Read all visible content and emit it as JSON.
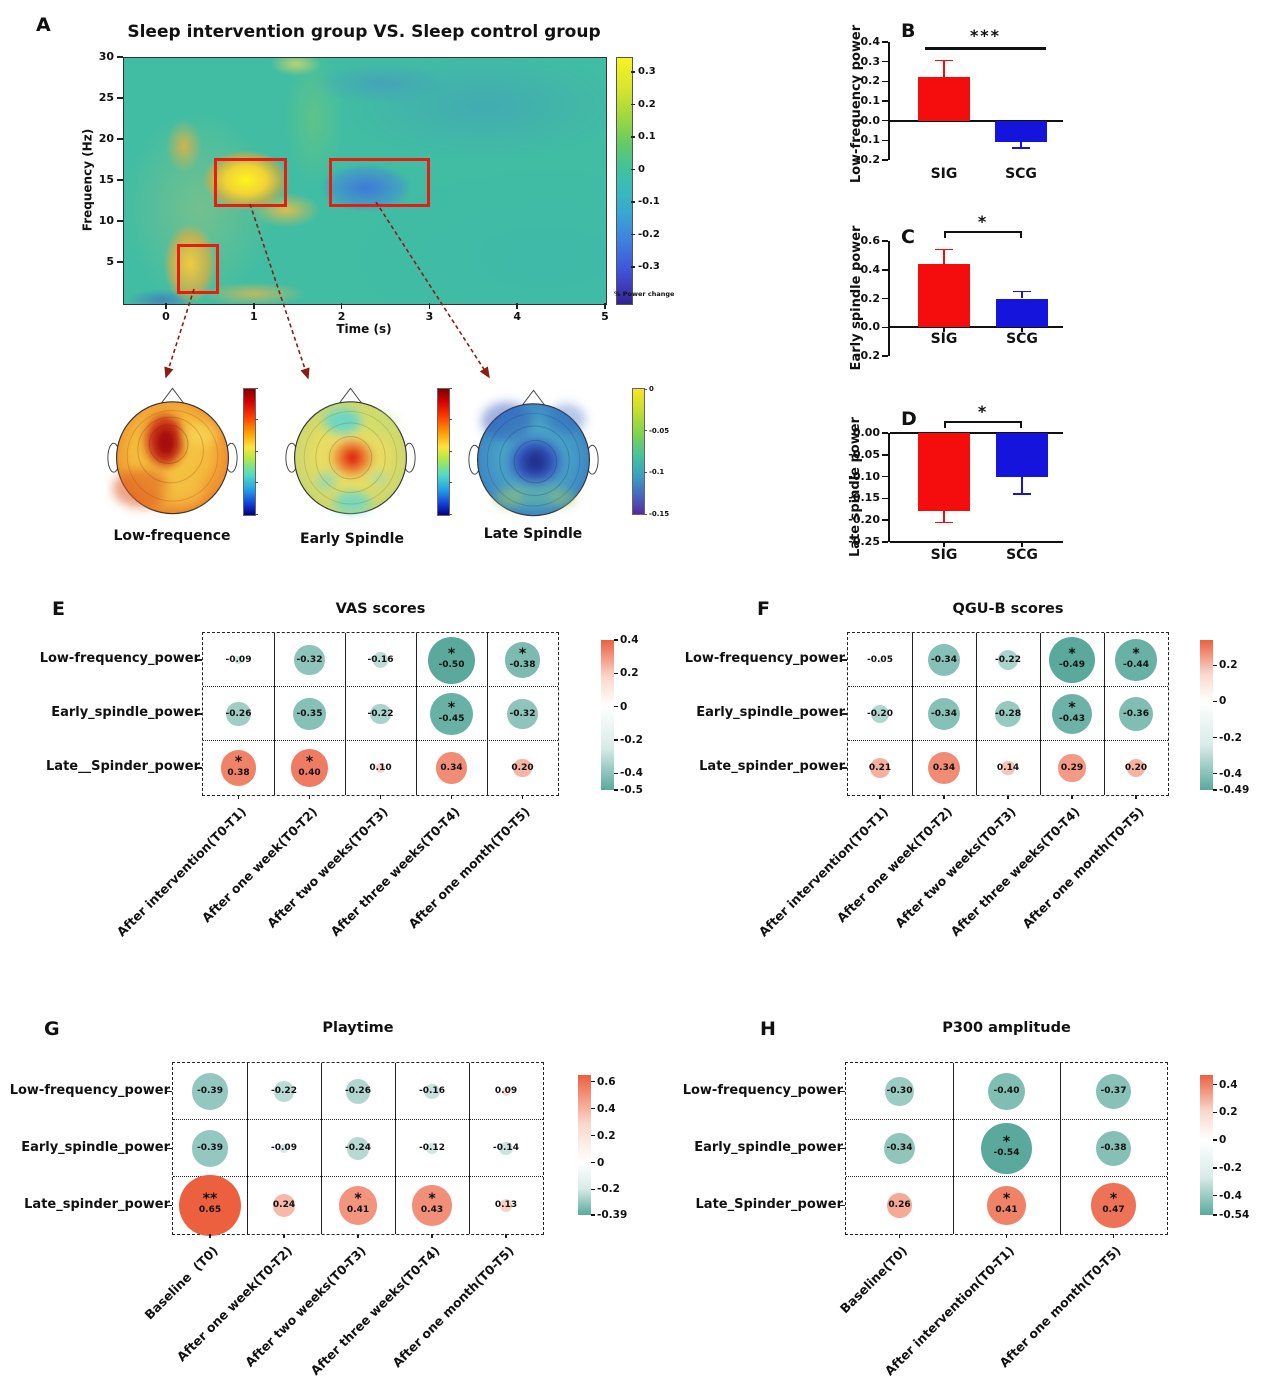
{
  "colors": {
    "sig_bar": "#f50d0d",
    "scg_bar": "#1414dd",
    "matrix_positive": "#ec6040",
    "matrix_negative": "#5aa99c",
    "highlight_box": "#e71d13"
  },
  "topomaps": [
    {
      "label": "Low-frequence",
      "colormap": "jet"
    },
    {
      "label": "Early Spindle",
      "colormap": "jet"
    },
    {
      "label": "Late Spindle",
      "colormap": "viridis",
      "colorbar_ticks": [
        "0",
        "-0.05",
        "-0.1",
        "-0.15"
      ]
    }
  ],
  "chart_data": [
    {
      "id": "A",
      "type": "heatmap",
      "label": "A",
      "title": "Sleep intervention group VS. Sleep control group",
      "xlabel": "Time (s)",
      "ylabel": "Frequency (Hz)",
      "xticks": [
        "0",
        "1",
        "2",
        "3",
        "4",
        "5"
      ],
      "yticks": [
        "30",
        "25",
        "20",
        "15",
        "10",
        "5"
      ],
      "colorbar": {
        "ticks": [
          "0.3",
          "0.2",
          "0.1",
          "0",
          "-0.1",
          "-0.2",
          "-0.3"
        ],
        "caption": "% Power change"
      },
      "highlight_boxes": [
        "low-frequency cluster ~0.1-0.5 s / 2-7 Hz",
        "early spindle cluster ~0.6-1.3 s / 12.5-17.5 Hz",
        "late spindle cluster ~1.9-2.9 s / 12.5-17.5 Hz"
      ]
    },
    {
      "id": "B",
      "type": "bar",
      "label": "B",
      "ylabel": "Low-frequency power",
      "categories": [
        "SIG",
        "SCG"
      ],
      "values": [
        0.22,
        -0.11
      ],
      "errors": [
        0.085,
        0.028
      ],
      "bar_colors": [
        "#f50d0d",
        "#1414dd"
      ],
      "yticks": [
        0.4,
        0.3,
        0.2,
        0.1,
        0.0,
        -0.1,
        -0.2
      ],
      "ytick_labels": [
        "0.4",
        "0.3",
        "0.2",
        "0.1",
        "0.0",
        "-0.1",
        "-0.2"
      ],
      "ylim": [
        -0.2,
        0.4
      ],
      "significance": "***",
      "sig_style": "line"
    },
    {
      "id": "C",
      "type": "bar",
      "label": "C",
      "ylabel": "Early spindle power",
      "categories": [
        "SIG",
        "SCG"
      ],
      "values": [
        0.44,
        0.2
      ],
      "errors": [
        0.1,
        0.048
      ],
      "bar_colors": [
        "#f50d0d",
        "#1414dd"
      ],
      "yticks": [
        0.6,
        0.4,
        0.2,
        0.0,
        -0.2
      ],
      "ytick_labels": [
        "0.6",
        "0.4",
        "0.2",
        "0.0",
        "-0.2"
      ],
      "ylim": [
        -0.2,
        0.6
      ],
      "significance": "*",
      "sig_style": "bracket"
    },
    {
      "id": "D",
      "type": "bar",
      "label": "D",
      "ylabel": "Late spindle power",
      "categories": [
        "SIG",
        "SCG"
      ],
      "values": [
        -0.18,
        -0.1
      ],
      "errors": [
        0.025,
        0.04
      ],
      "bar_colors": [
        "#f50d0d",
        "#1414dd"
      ],
      "yticks": [
        0.0,
        -0.05,
        -0.1,
        -0.15,
        -0.2,
        -0.25
      ],
      "ytick_labels": [
        "0.00",
        "-0.05",
        "-0.10",
        "-0.15",
        "-0.20",
        "-0.25"
      ],
      "ylim": [
        -0.25,
        0
      ],
      "significance": "*",
      "sig_style": "bracket"
    },
    {
      "id": "E",
      "type": "bubble_matrix",
      "label": "E",
      "title": "VAS scores",
      "rows": [
        "Low-frequency_power",
        "Early_spindle_power",
        "Late__Spinder_power"
      ],
      "cols": [
        "After intervention(T0-T1)",
        "After one week(T0-T2)",
        "After two weeks(T0-T3)",
        "After three weeks(T0-T4)",
        "After one month(T0-T5)"
      ],
      "values": [
        [
          -0.09,
          -0.32,
          -0.16,
          -0.5,
          -0.38
        ],
        [
          -0.26,
          -0.35,
          -0.22,
          -0.45,
          -0.32
        ],
        [
          0.38,
          0.4,
          0.1,
          0.34,
          0.2
        ]
      ],
      "labels": [
        [
          "-0.09",
          "-0.32",
          "-0.16",
          "-0.50",
          "-0.38"
        ],
        [
          "-0.26",
          "-0.35",
          "-0.22",
          "-0.45",
          "-0.32"
        ],
        [
          "0.38",
          "0.40",
          "0.10",
          "0.34",
          "0.20"
        ]
      ],
      "stars": [
        [
          "",
          "",
          "",
          "*",
          "*"
        ],
        [
          "",
          "",
          "",
          "*",
          ""
        ],
        [
          "*",
          "*",
          "",
          "",
          ""
        ]
      ],
      "colorbar": {
        "ticks": [
          "0.4",
          "0.2",
          "0",
          "-0.2",
          "-0.4",
          "-0.5"
        ]
      }
    },
    {
      "id": "F",
      "type": "bubble_matrix",
      "label": "F",
      "title": "QGU-B scores",
      "rows": [
        "Low-frequency_power",
        "Early_spindle_power",
        "Late_spinder_power"
      ],
      "cols": [
        "After intervention(T0-T1)",
        "After one week(T0-T2)",
        "After two weeks(T0-T3)",
        "After three weeks(T0-T4)",
        "After one month(T0-T5)"
      ],
      "values": [
        [
          -0.05,
          -0.34,
          -0.22,
          -0.49,
          -0.44
        ],
        [
          -0.2,
          -0.34,
          -0.28,
          -0.43,
          -0.36
        ],
        [
          0.21,
          0.34,
          0.14,
          0.29,
          0.2
        ]
      ],
      "labels": [
        [
          "-0.05",
          "-0.34",
          "-0.22",
          "-0.49",
          "-0.44"
        ],
        [
          "-0.20",
          "-0.34",
          "-0.28",
          "-0.43",
          "-0.36"
        ],
        [
          "0.21",
          "0.34",
          "0.14",
          "0.29",
          "0.20"
        ]
      ],
      "stars": [
        [
          "",
          "",
          "",
          "*",
          "*"
        ],
        [
          "",
          "",
          "",
          "*",
          ""
        ],
        [
          "",
          "",
          "",
          "",
          ""
        ]
      ],
      "colorbar": {
        "ticks": [
          "0.2",
          "0",
          "-0.2",
          "-0.4",
          "-0.49"
        ]
      }
    },
    {
      "id": "G",
      "type": "bubble_matrix",
      "label": "G",
      "title": "Playtime",
      "rows": [
        "Low-frequency_power",
        "Early_spindle_power",
        "Late_spinder_power"
      ],
      "cols": [
        "Baseline  (T0)",
        "After one week(T0-T2)",
        "After two weeks(T0-T3)",
        "After three weeks(T0-T4)",
        "After one month(T0-T5)"
      ],
      "values": [
        [
          -0.39,
          -0.22,
          -0.26,
          -0.16,
          0.09
        ],
        [
          -0.39,
          -0.09,
          -0.24,
          -0.12,
          -0.14
        ],
        [
          0.65,
          0.24,
          0.41,
          0.43,
          0.13
        ]
      ],
      "labels": [
        [
          "-0.39",
          "-0.22",
          "-0.26",
          "-0.16",
          "0.09"
        ],
        [
          "-0.39",
          "-0.09",
          "-0.24",
          "-0.12",
          "-0.14"
        ],
        [
          "0.65",
          "0.24",
          "0.41",
          "0.43",
          "0.13"
        ]
      ],
      "stars": [
        [
          "",
          "",
          "",
          "",
          ""
        ],
        [
          "",
          "",
          "",
          "",
          ""
        ],
        [
          "**",
          "",
          "*",
          "*",
          ""
        ]
      ],
      "colorbar": {
        "ticks": [
          "0.6",
          "0.4",
          "0.2",
          "0",
          "-0.2",
          "-0.39"
        ]
      }
    },
    {
      "id": "H",
      "type": "bubble_matrix",
      "label": "H",
      "title": "P300 amplitude",
      "rows": [
        "Low-frequency_power",
        "Early_spindle_power",
        "Late_Spinder_power"
      ],
      "cols": [
        "Baseline(T0)",
        "After intervention(T0-T1)",
        "After one month(T0-T5)"
      ],
      "values": [
        [
          -0.3,
          -0.4,
          -0.37
        ],
        [
          -0.34,
          -0.54,
          -0.38
        ],
        [
          0.26,
          0.41,
          0.47
        ]
      ],
      "labels": [
        [
          "-0.30",
          "-0.40",
          "-0.37"
        ],
        [
          "-0.34",
          "-0.54",
          "-0.38"
        ],
        [
          "0.26",
          "0.41",
          "0.47"
        ]
      ],
      "stars": [
        [
          "",
          "",
          ""
        ],
        [
          "",
          "*",
          ""
        ],
        [
          "",
          "*",
          "*"
        ]
      ],
      "colorbar": {
        "ticks": [
          "0.4",
          "0.2",
          "0",
          "-0.2",
          "-0.4",
          "-0.54"
        ]
      }
    }
  ]
}
